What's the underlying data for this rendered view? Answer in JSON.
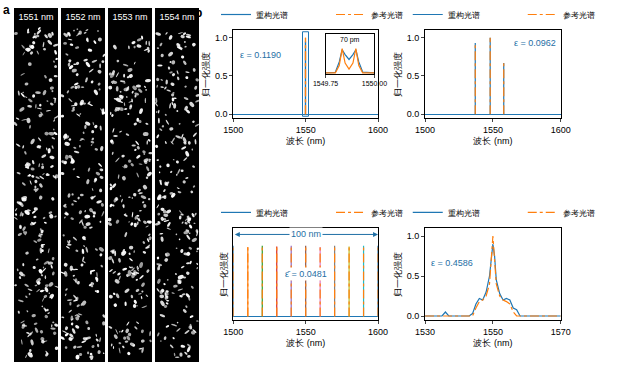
{
  "panel_labels": [
    "a",
    "b"
  ],
  "speckle_images": [
    "1551 nm",
    "1552 nm",
    "1553 nm",
    "1554 nm"
  ],
  "chart_data": [
    {
      "type": "stem",
      "xlabel": "波长 (nm)",
      "ylabel": "归一化强度",
      "xlim": [
        1500,
        1600
      ],
      "xticks": [
        1500,
        1550,
        1600
      ],
      "ylim": [
        -0.05,
        1.1
      ],
      "yticks": [
        {
          "value": 0,
          "label": "0.0"
        },
        {
          "value": 0.5,
          "label": "0.5"
        },
        {
          "value": 1,
          "label": "1.0"
        }
      ],
      "grid": false,
      "legend": "top",
      "annotations": [
        "ε = 0.1190"
      ],
      "series": [
        {
          "name": "重构光谱",
          "color": "#1f77b4",
          "line_style": "solid",
          "x": [
            1549.835,
            1549.905
          ],
          "values": [
            0.95,
            0.95
          ]
        },
        {
          "name": "参考光谱",
          "color": "#ff7f0e",
          "line_style": "dashdot",
          "x": [
            1549.835,
            1549.905
          ],
          "values": [
            1,
            1
          ]
        }
      ]
    },
    {
      "type": "line",
      "xlim": [
        1549.75,
        1550
      ],
      "xticks": [
        1549.75,
        {
          "value": 1550,
          "label": "1550.00"
        }
      ],
      "ylim": [
        -0.05,
        1.6
      ],
      "tick_labels": "x",
      "grid": false,
      "annotations": [
        "70 pm"
      ],
      "series": [
        {
          "name": "重构光谱",
          "color": "#1f77b4",
          "line_style": "solid",
          "x": [
            1549.75,
            1549.8,
            1549.82,
            1549.835,
            1549.85,
            1549.87,
            1549.89,
            1549.905,
            1549.92,
            1549.94,
            1550
          ],
          "values": [
            0,
            0.02,
            0.45,
            0.95,
            0.75,
            0.55,
            0.75,
            0.95,
            0.45,
            0.03,
            0
          ]
        },
        {
          "name": "参考光谱",
          "color": "#ff7f0e",
          "line_style": "solid",
          "x": [
            1549.75,
            1549.8,
            1549.82,
            1549.835,
            1549.85,
            1549.87,
            1549.89,
            1549.905,
            1549.92,
            1549.94,
            1550
          ],
          "values": [
            0,
            0,
            0.3,
            1,
            0.4,
            0.15,
            0.4,
            1,
            0.3,
            0,
            0
          ]
        }
      ]
    },
    {
      "type": "stem",
      "xlabel": "波长 (nm)",
      "ylabel": "归一化强度",
      "xlim": [
        1500,
        1600
      ],
      "xticks": [
        1500,
        1550,
        1600
      ],
      "ylim": [
        -0.05,
        1.1
      ],
      "yticks": [
        {
          "value": 0,
          "label": "0.0"
        },
        {
          "value": 0.5,
          "label": "0.5"
        },
        {
          "value": 1,
          "label": "1.0"
        }
      ],
      "grid": false,
      "legend": "top",
      "annotations": [
        "ε = 0.0962"
      ],
      "series": [
        {
          "name": "重构光谱",
          "color": "#1f77b4",
          "line_style": "solid",
          "x": [
            1537,
            1548,
            1558
          ],
          "values": [
            0.93,
            1,
            0.67
          ]
        },
        {
          "name": "参考光谱",
          "color": "#ff7f0e",
          "line_style": "dashdot",
          "x": [
            1537,
            1548,
            1558
          ],
          "values": [
            0.92,
            1,
            0.68
          ]
        }
      ]
    },
    {
      "type": "stem",
      "xlabel": "波长 (nm)",
      "ylabel": "归一化强度",
      "xlim": [
        1500,
        1600
      ],
      "xticks": [
        1500,
        1550,
        1600
      ],
      "ylim": [
        -0.05,
        1.25
      ],
      "tick_labels": "x",
      "grid": false,
      "legend": "top",
      "annotations": [
        "ε̄ = 0.0481",
        "100 nm"
      ],
      "series": [
        {
          "name": "重构光谱",
          "line_style": "solid",
          "colors": [
            "#1f77b4",
            "#ff7f0e",
            "#2ca02c",
            "#d62728",
            "#9467bd",
            "#8c564b",
            "#e377c2",
            "#7f7f7f",
            "#bcbd22",
            "#17becf",
            "#1f77b4"
          ],
          "x": [
            1500,
            1510,
            1520,
            1530,
            1540,
            1550,
            1560,
            1570,
            1580,
            1590,
            1600
          ],
          "values": [
            1,
            0.98,
            1,
            0.99,
            1,
            1,
            0.98,
            1,
            0.99,
            1,
            1
          ]
        },
        {
          "name": "参考光谱",
          "color": "#ff7f0e",
          "line_style": "dashdot",
          "x": [
            1500,
            1510,
            1520,
            1530,
            1540,
            1550,
            1560,
            1570,
            1580,
            1590,
            1600
          ],
          "values": [
            1,
            1,
            1,
            1,
            1,
            1,
            1,
            1,
            1,
            1,
            1
          ]
        }
      ]
    },
    {
      "type": "line",
      "xlabel": "波长 (nm)",
      "ylabel": "归一化强度",
      "xlim": [
        1530,
        1570
      ],
      "xticks": [
        1530,
        1550,
        1570
      ],
      "ylim": [
        -0.05,
        1.1
      ],
      "yticks": [
        {
          "value": 0,
          "label": "0.0"
        },
        {
          "value": 0.5,
          "label": "0.5"
        },
        {
          "value": 1,
          "label": "1.0"
        }
      ],
      "grid": false,
      "legend": "top",
      "annotations": [
        "ε = 0.4586"
      ],
      "series": [
        {
          "name": "重构光谱",
          "color": "#1f77b4",
          "line_style": "solid",
          "x": [
            1530,
            1535,
            1536,
            1537,
            1543,
            1544,
            1545,
            1546,
            1547,
            1548,
            1549,
            1549.5,
            1550,
            1550.5,
            1551,
            1552,
            1553,
            1554,
            1555,
            1556,
            1557,
            1558,
            1570
          ],
          "values": [
            0,
            0,
            0.05,
            0,
            0,
            0.03,
            0.15,
            0.22,
            0.2,
            0.3,
            0.5,
            0.75,
            0.9,
            0.75,
            0.45,
            0.28,
            0.2,
            0.22,
            0.2,
            0.1,
            0.08,
            0,
            0
          ]
        },
        {
          "name": "参考光谱",
          "color": "#ff7f0e",
          "line_style": "dashdot",
          "x": [
            1530,
            1544,
            1545,
            1546,
            1547,
            1548,
            1549,
            1549.5,
            1550,
            1550.5,
            1551,
            1552,
            1553,
            1554,
            1555,
            1556,
            1557,
            1570
          ],
          "values": [
            0,
            0,
            0.1,
            0.18,
            0.2,
            0.25,
            0.4,
            0.7,
            1,
            0.7,
            0.4,
            0.25,
            0.2,
            0.18,
            0.15,
            0.05,
            0,
            0
          ]
        }
      ]
    }
  ]
}
